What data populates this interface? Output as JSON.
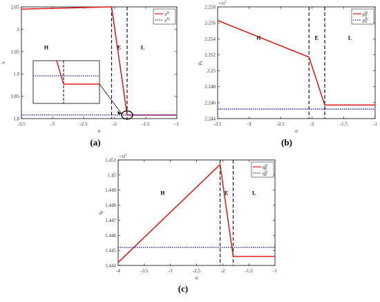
{
  "chart_data": [
    {
      "type": "line",
      "panel_label": "(a)",
      "xlabel": "α",
      "ylabel": "x",
      "xlim": [
        -3.5,
        -1
      ],
      "ylim": [
        1.8,
        2.05
      ],
      "xticks": [
        -3.5,
        -3,
        -2.5,
        -2,
        -1.5,
        -1
      ],
      "yticks": [
        1.8,
        1.85,
        1.9,
        1.95,
        2,
        2.05
      ],
      "xtick_labels": [
        "-3.5",
        "-3",
        "-2.5",
        "-2",
        "-1.5",
        "-1"
      ],
      "ytick_labels": [
        "1.8",
        "1.85",
        "1.9",
        "1.95",
        "2",
        "2.05"
      ],
      "vlines": [
        -2.05,
        -1.8
      ],
      "regions": [
        {
          "label": "H",
          "x": -3.1,
          "y": 1.955
        },
        {
          "label": "E",
          "x": -1.93,
          "y": 1.955
        },
        {
          "label": "L",
          "x": -1.55,
          "y": 1.955
        }
      ],
      "legend_position": "top-right",
      "series": [
        {
          "name": "x^D",
          "color": "#e02020",
          "style": "solid",
          "x": [
            -3.5,
            -2.05,
            -1.8,
            -1.0
          ],
          "y": [
            2.045,
            2.05,
            1.808,
            1.808
          ]
        },
        {
          "name": "x^N",
          "color": "#1f1fd0",
          "style": "dotted",
          "x": [
            -3.5,
            -1.0
          ],
          "y": [
            1.808,
            1.808
          ]
        }
      ],
      "inset": true
    },
    {
      "type": "line",
      "panel_label": "(b)",
      "xlabel": "α",
      "ylabel": "p_F",
      "y_multiplier": "×10^5",
      "xlim": [
        -3.5,
        -1
      ],
      "ylim": [
        2.244,
        2.258
      ],
      "xticks": [
        -3.5,
        -3,
        -2.5,
        -2,
        -1.5,
        -1
      ],
      "yticks": [
        2.244,
        2.246,
        2.248,
        2.25,
        2.252,
        2.254,
        2.256,
        2.258
      ],
      "xtick_labels": [
        "-3.5",
        "-3",
        "-2.5",
        "-2",
        "-1.5",
        "-1"
      ],
      "ytick_labels": [
        "2.244",
        "2.246",
        "2.248",
        "2.25",
        "2.252",
        "2.254",
        "2.256",
        "2.258"
      ],
      "vlines": [
        -2.05,
        -1.8
      ],
      "regions": [
        {
          "label": "H",
          "x": -2.85,
          "y": 2.2539
        },
        {
          "label": "E",
          "x": -1.93,
          "y": 2.2539
        },
        {
          "label": "L",
          "x": -1.4,
          "y": 2.2539
        }
      ],
      "legend_position": "top-right",
      "series": [
        {
          "name": "p_F^D",
          "color": "#e02020",
          "style": "solid",
          "x": [
            -3.5,
            -2.05,
            -1.8,
            -1.0
          ],
          "y": [
            2.2563,
            2.2517,
            2.2457,
            2.2457
          ]
        },
        {
          "name": "p_F^N",
          "color": "#1f1fd0",
          "style": "dotted",
          "x": [
            -3.5,
            -1.0
          ],
          "y": [
            2.2452,
            2.2452
          ]
        }
      ]
    },
    {
      "type": "line",
      "panel_label": "(c)",
      "xlabel": "α",
      "ylabel": "q_F",
      "y_multiplier": "×10^5",
      "xlim": [
        -4,
        -1
      ],
      "ylim": [
        1.444,
        1.451
      ],
      "xticks": [
        -4,
        -3.5,
        -3,
        -2.5,
        -2,
        -1.5,
        -1
      ],
      "yticks": [
        1.444,
        1.445,
        1.446,
        1.447,
        1.448,
        1.449,
        1.45,
        1.451
      ],
      "xtick_labels": [
        "-4",
        "-3.5",
        "-3",
        "-2.5",
        "-2",
        "-1.5",
        "-1"
      ],
      "ytick_labels": [
        "1.444",
        "1.445",
        "1.446",
        "1.447",
        "1.448",
        "1.449",
        "1.45",
        "1.451"
      ],
      "vlines": [
        -2.05,
        -1.8
      ],
      "regions": [
        {
          "label": "H",
          "x": -3.15,
          "y": 1.4487
        },
        {
          "label": "E",
          "x": -1.93,
          "y": 1.4487
        },
        {
          "label": "L",
          "x": -1.4,
          "y": 1.4487
        }
      ],
      "legend_position": "top-right",
      "series": [
        {
          "name": "q_F^D",
          "color": "#e02020",
          "style": "solid",
          "x": [
            -4.0,
            -2.05,
            -1.8,
            -1.0
          ],
          "y": [
            1.4442,
            1.4507,
            1.4446,
            1.4446
          ]
        },
        {
          "name": "q_F^N",
          "color": "#1f1fd0",
          "style": "dotted",
          "x": [
            -4.0,
            -1.0
          ],
          "y": [
            1.4452,
            1.4452
          ]
        }
      ]
    }
  ]
}
